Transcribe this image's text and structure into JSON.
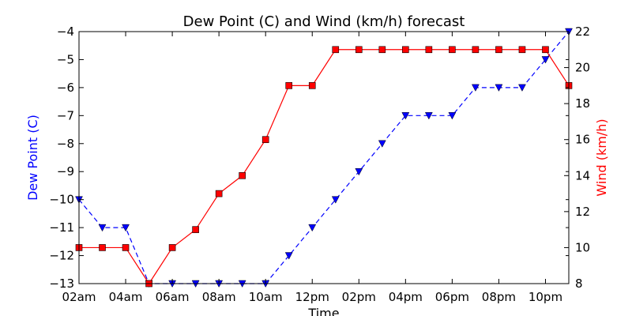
{
  "chart_data": {
    "type": "line",
    "title": "Dew Point (C) and Wind (km/h) forecast",
    "xlabel": "Time",
    "ylabel_left": "Dew Point (C)",
    "ylabel_right": "Wind (km/h)",
    "x_hours": [
      2,
      3,
      4,
      5,
      6,
      7,
      8,
      9,
      10,
      11,
      12,
      13,
      14,
      15,
      16,
      17,
      18,
      19,
      20,
      21,
      22,
      23
    ],
    "x_tick_hours": [
      2,
      4,
      6,
      8,
      10,
      12,
      14,
      16,
      18,
      20,
      22
    ],
    "x_tick_labels": [
      "02am",
      "04am",
      "06am",
      "08am",
      "10am",
      "12pm",
      "02pm",
      "04pm",
      "06pm",
      "08pm",
      "10pm"
    ],
    "xlim": [
      2,
      23
    ],
    "ylim_left": [
      -13,
      -4
    ],
    "yticks_left": [
      -13,
      -12,
      -11,
      -10,
      -9,
      -8,
      -7,
      -6,
      -5,
      -4
    ],
    "ylim_right": [
      8,
      22
    ],
    "yticks_right": [
      8,
      10,
      12,
      14,
      16,
      18,
      20,
      22
    ],
    "series": [
      {
        "axis": "left",
        "color": "#0000ff",
        "line": "dashed",
        "marker": "triangle-down",
        "values": [
          -10,
          -11,
          -11,
          -13,
          -13,
          -13,
          -13,
          -13,
          -13,
          -12,
          -11,
          -10,
          -9,
          -8,
          -7,
          -7,
          -7,
          -6,
          -6,
          -6,
          -5,
          -4
        ]
      },
      {
        "axis": "right",
        "color": "#ff0000",
        "line": "solid",
        "marker": "square",
        "values": [
          10,
          10,
          10,
          8,
          10,
          11,
          13,
          14,
          16,
          19,
          19,
          21,
          21,
          21,
          21,
          21,
          21,
          21,
          21,
          21,
          21,
          19
        ]
      }
    ]
  }
}
